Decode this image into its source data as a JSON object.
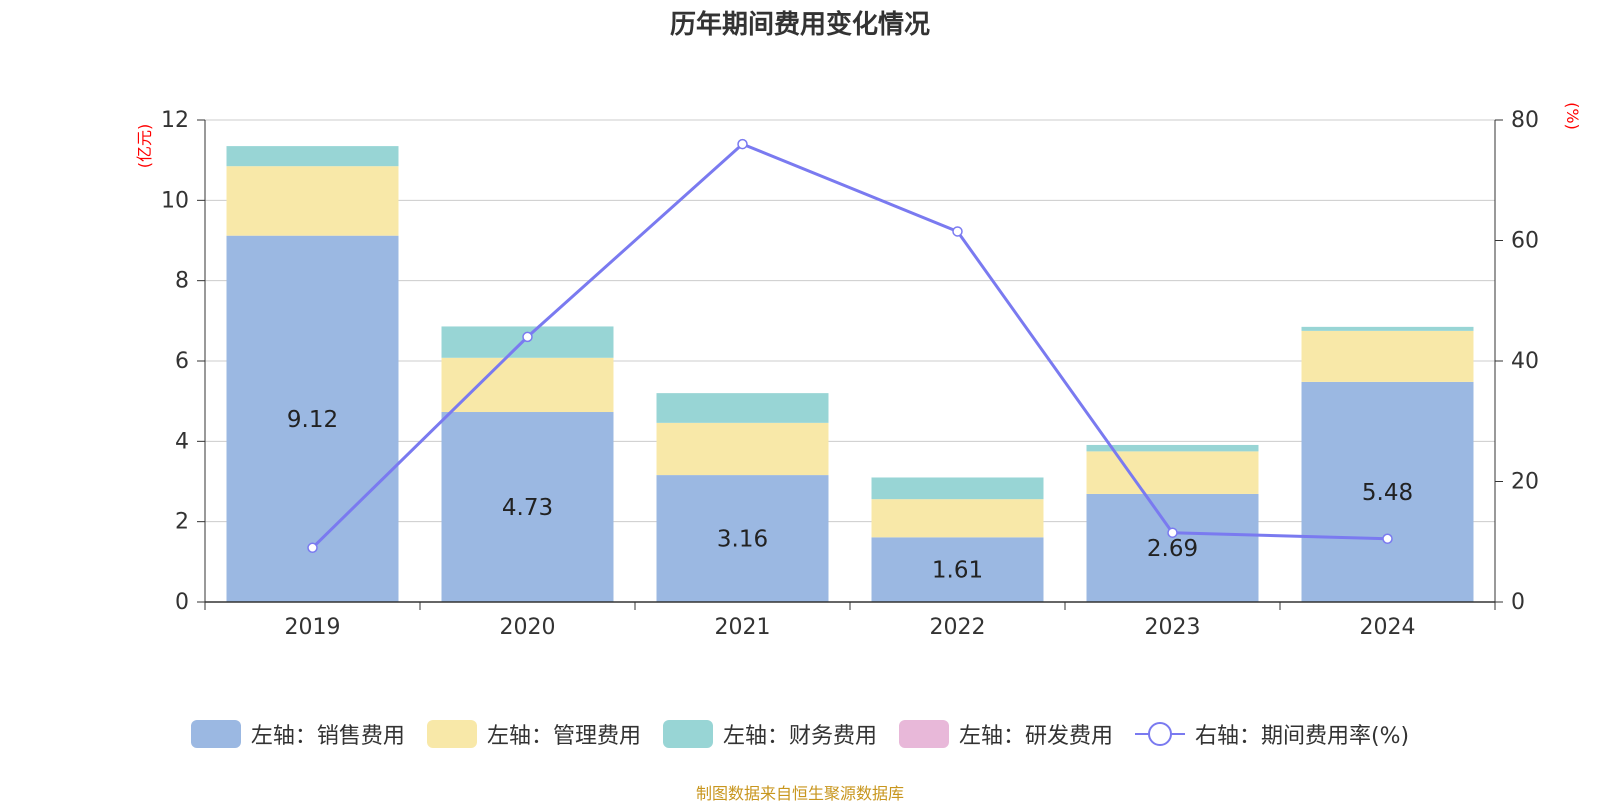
{
  "chart_data": {
    "type": "bar",
    "stacked": true,
    "title": "历年期间费用变化情况",
    "categories": [
      "2019",
      "2020",
      "2021",
      "2022",
      "2023",
      "2024"
    ],
    "y_left": {
      "unit_label": "(亿元)",
      "lim": [
        0,
        12
      ],
      "ticks": [
        "0",
        "2",
        "4",
        "6",
        "8",
        "10",
        "12"
      ]
    },
    "y_right": {
      "unit_label": "(%)",
      "lim": [
        0,
        80
      ],
      "ticks": [
        "0",
        "20",
        "40",
        "60",
        "80"
      ]
    },
    "series": [
      {
        "name": "左轴：销售费用",
        "axis": "left",
        "type": "bar",
        "color": "#9bb8e2",
        "values": [
          9.12,
          4.73,
          3.16,
          1.61,
          2.69,
          5.48
        ],
        "labels": [
          "9.12",
          "4.73",
          "3.16",
          "1.61",
          "2.69",
          "5.48"
        ]
      },
      {
        "name": "左轴：管理费用",
        "axis": "left",
        "type": "bar",
        "color": "#f8e8a8",
        "values": [
          1.73,
          1.35,
          1.3,
          0.95,
          1.06,
          1.27
        ]
      },
      {
        "name": "左轴：财务费用",
        "axis": "left",
        "type": "bar",
        "color": "#98d5d5",
        "values": [
          0.5,
          0.78,
          0.74,
          0.54,
          0.16,
          0.1
        ]
      },
      {
        "name": "左轴：研发费用",
        "axis": "left",
        "type": "bar",
        "color": "#e8b8d9",
        "values": [
          0,
          0,
          0,
          0,
          0,
          0
        ]
      },
      {
        "name": "右轴：期间费用率(%)",
        "axis": "right",
        "type": "line",
        "color": "#7a7af0",
        "values": [
          9,
          44,
          76,
          61.5,
          11.5,
          10.5
        ]
      }
    ],
    "legend_position": "bottom-center",
    "grid": true
  },
  "source_text": "制图数据来自恒生聚源数据库"
}
